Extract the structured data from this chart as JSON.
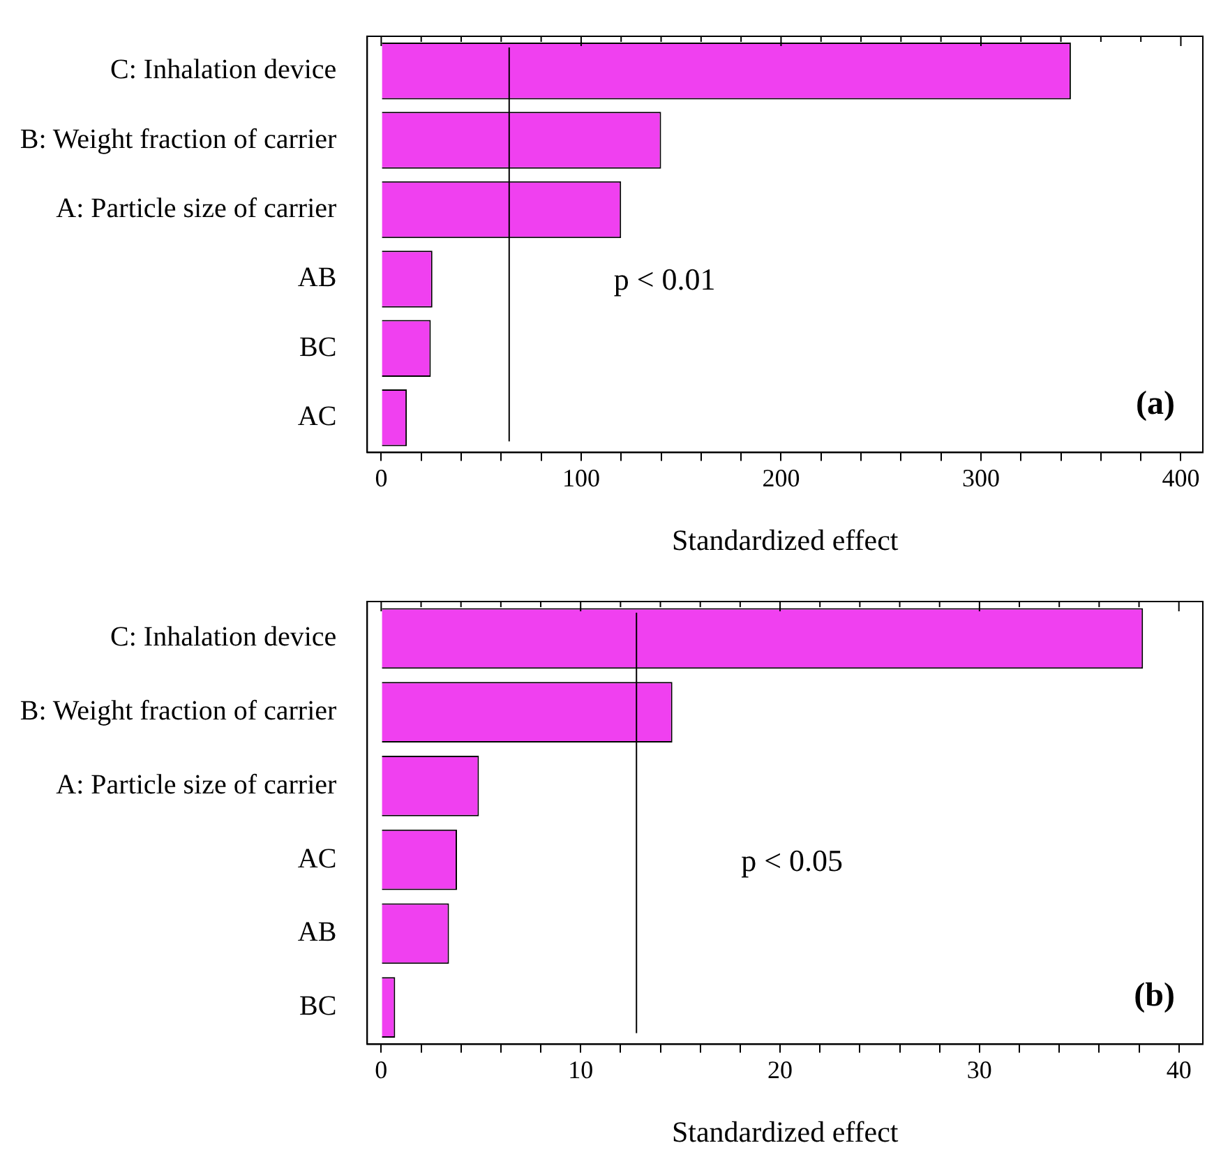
{
  "chart_data": [
    {
      "type": "bar",
      "orientation": "horizontal",
      "categories": [
        "C: Inhalation device",
        "B: Weight fraction of carrier",
        "A: Particle size of carrier",
        "AB",
        "BC",
        "AC"
      ],
      "values": [
        345,
        140,
        120,
        25.6,
        24.8,
        12.8
      ],
      "color": "#f040f0",
      "xlabel": "Standardized effect",
      "xlim": [
        -7,
        411
      ],
      "xticks": [
        0,
        {
          "value": 20,
          "label": null
        },
        {
          "value": 40,
          "label": null
        },
        {
          "value": 60,
          "label": null
        },
        {
          "value": 80,
          "label": null
        },
        100,
        {
          "value": 120,
          "label": null
        },
        {
          "value": 140,
          "label": null
        },
        {
          "value": 160,
          "label": null
        },
        {
          "value": 180,
          "label": null
        },
        200,
        {
          "value": 220,
          "label": null
        },
        {
          "value": 240,
          "label": null
        },
        {
          "value": 260,
          "label": null
        },
        {
          "value": 280,
          "label": null
        },
        300,
        {
          "value": 320,
          "label": null
        },
        {
          "value": 340,
          "label": null
        },
        {
          "value": 360,
          "label": null
        },
        {
          "value": 380,
          "label": null
        },
        400
      ],
      "ref_lines": [
        {
          "axis": "x",
          "value": 64,
          "color": "#000000",
          "label": "p < 0.01"
        }
      ],
      "annotations": [
        "(a)"
      ]
    },
    {
      "type": "bar",
      "orientation": "horizontal",
      "categories": [
        "C: Inhalation device",
        "B: Weight fraction of carrier",
        "A: Particle size of carrier",
        "AC",
        "AB",
        "BC"
      ],
      "values": [
        38.2,
        14.6,
        4.9,
        3.8,
        3.4,
        0.7
      ],
      "color": "#f040f0",
      "xlabel": "Standardized effect",
      "xlim": [
        -0.7,
        41.2
      ],
      "xticks": [
        0,
        {
          "value": 2,
          "label": null
        },
        {
          "value": 4,
          "label": null
        },
        {
          "value": 6,
          "label": null
        },
        {
          "value": 8,
          "label": null
        },
        10,
        {
          "value": 12,
          "label": null
        },
        {
          "value": 14,
          "label": null
        },
        {
          "value": 16,
          "label": null
        },
        {
          "value": 18,
          "label": null
        },
        20,
        {
          "value": 22,
          "label": null
        },
        {
          "value": 24,
          "label": null
        },
        {
          "value": 26,
          "label": null
        },
        {
          "value": 28,
          "label": null
        },
        30,
        {
          "value": 32,
          "label": null
        },
        {
          "value": 34,
          "label": null
        },
        {
          "value": 36,
          "label": null
        },
        {
          "value": 38,
          "label": null
        },
        40
      ],
      "ref_lines": [
        {
          "axis": "x",
          "value": 12.8,
          "color": "#000000",
          "label": "p < 0.05"
        }
      ],
      "annotations": [
        "(b)"
      ]
    }
  ]
}
